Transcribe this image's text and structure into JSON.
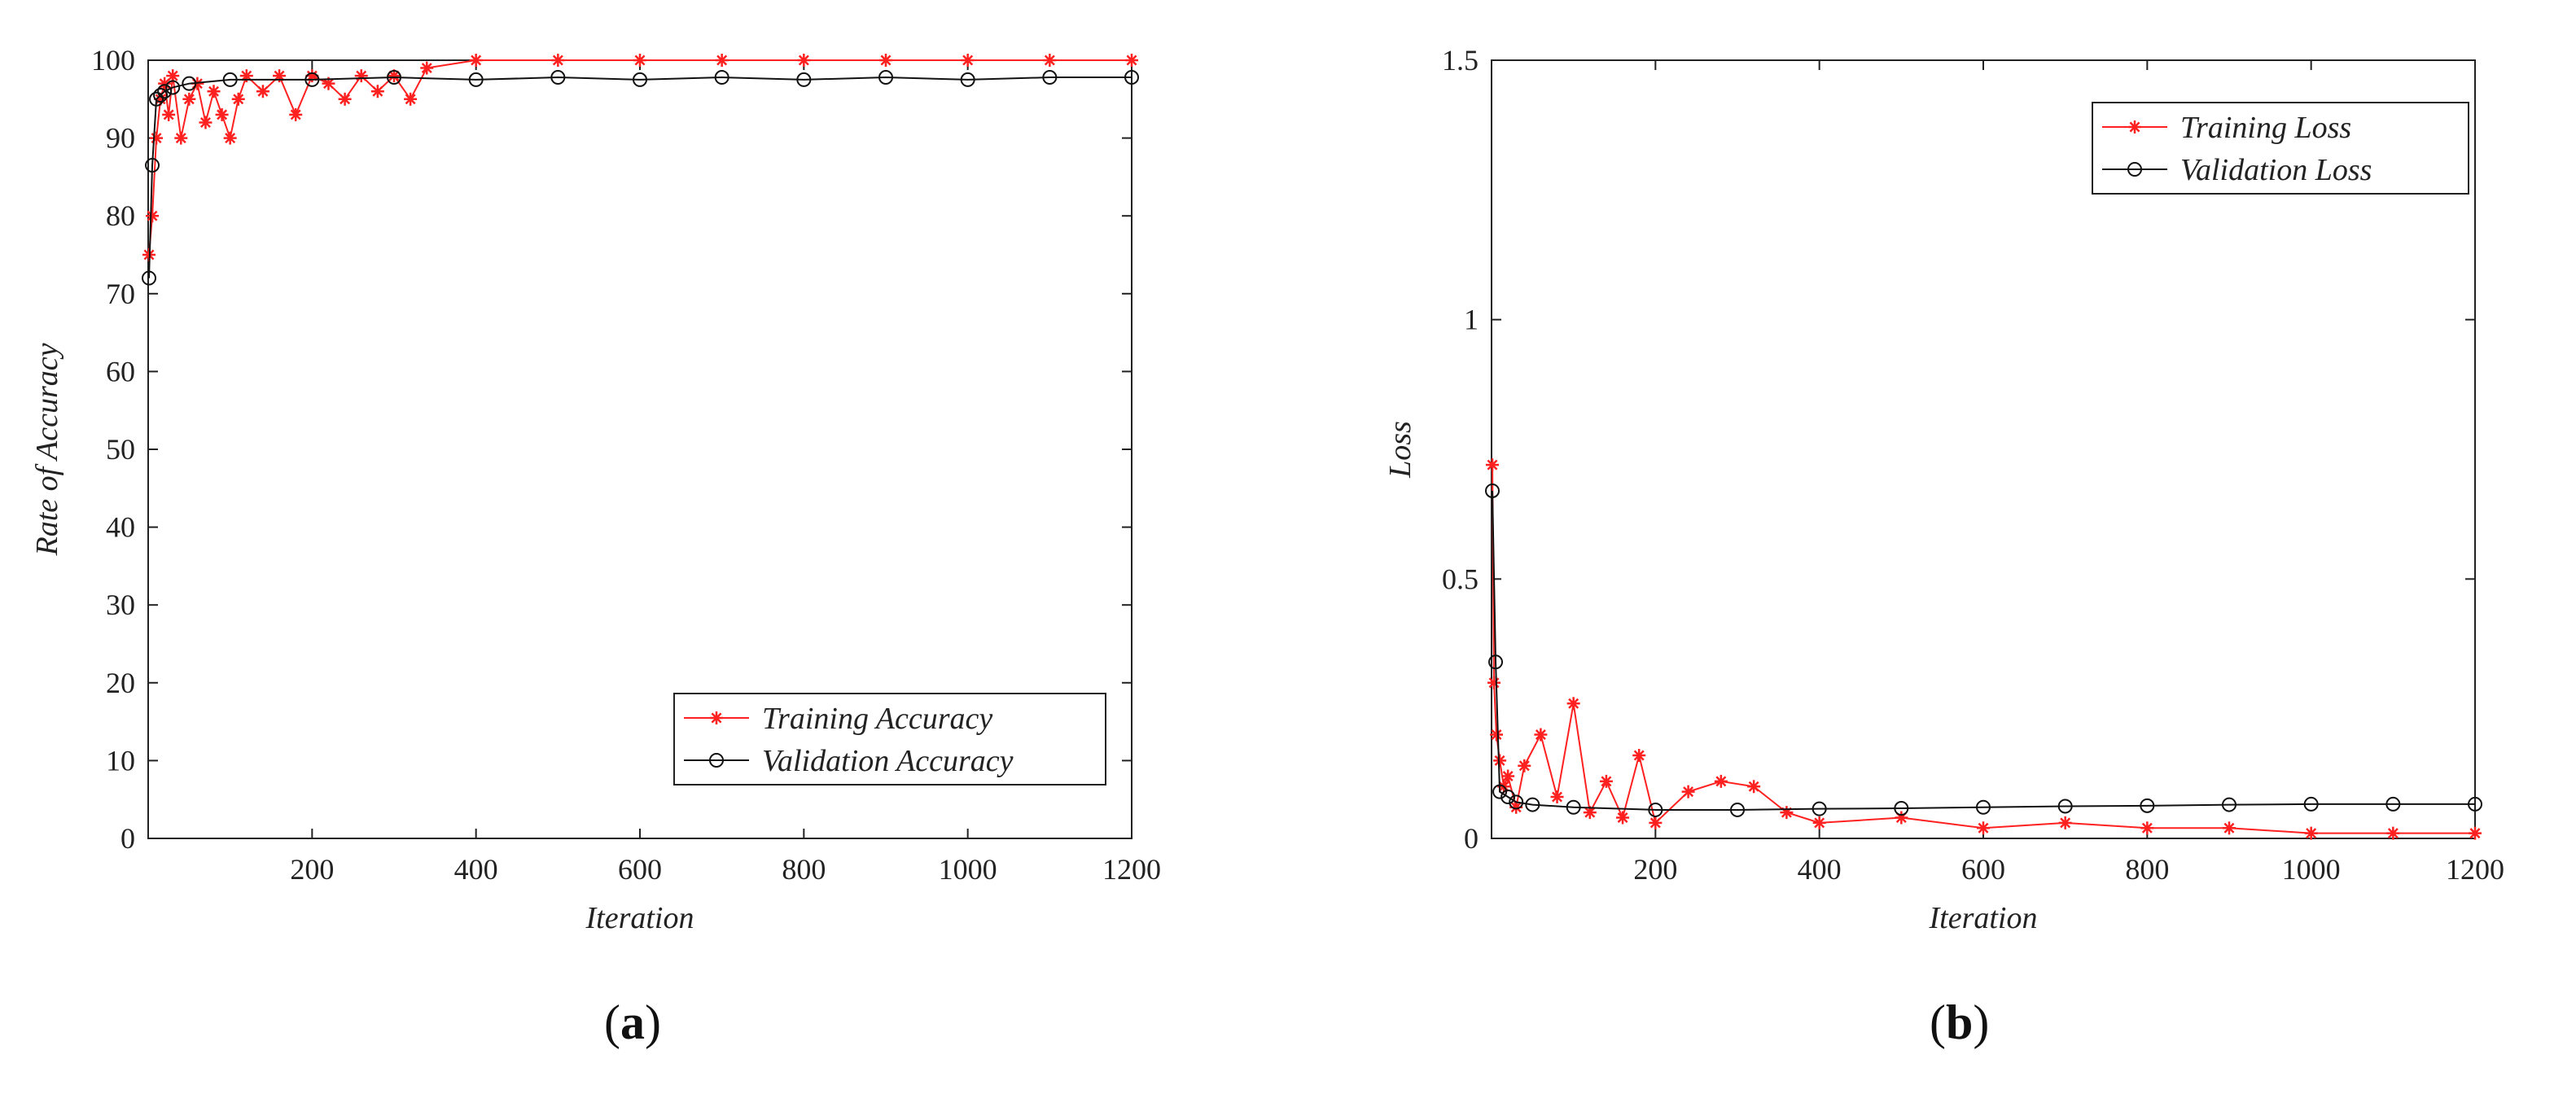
{
  "panels": [
    {
      "label_open": "(",
      "label_letter": "a",
      "label_close": ")"
    },
    {
      "label_open": "(",
      "label_letter": "b",
      "label_close": ")"
    }
  ],
  "chart_data": [
    {
      "type": "line",
      "title": "",
      "xlabel": "Iteration",
      "ylabel": "Rate of Accuracy",
      "xlim": [
        0,
        1200
      ],
      "ylim": [
        0,
        100
      ],
      "xticks": [
        200,
        400,
        600,
        800,
        1000,
        1200
      ],
      "yticks": [
        0,
        10,
        20,
        30,
        40,
        50,
        60,
        70,
        80,
        90,
        100
      ],
      "legend_position": "bottom-right",
      "series": [
        {
          "name": "Training Accuracy",
          "color": "#ff2020",
          "marker": "asterisk",
          "x": [
            1,
            5,
            10,
            15,
            20,
            25,
            30,
            40,
            50,
            60,
            70,
            80,
            90,
            100,
            110,
            120,
            140,
            160,
            180,
            200,
            220,
            240,
            260,
            280,
            300,
            320,
            340,
            400,
            500,
            600,
            700,
            800,
            900,
            1000,
            1100,
            1200
          ],
          "y": [
            75,
            80,
            90,
            95,
            97,
            93,
            98,
            90,
            95,
            97,
            92,
            96,
            93,
            90,
            95,
            98,
            96,
            98,
            93,
            98,
            97,
            95,
            98,
            96,
            98,
            95,
            99,
            100,
            100,
            100,
            100,
            100,
            100,
            100,
            100,
            100
          ]
        },
        {
          "name": "Validation Accuracy",
          "color": "#111111",
          "marker": "circle",
          "x": [
            1,
            5,
            10,
            15,
            20,
            30,
            50,
            100,
            200,
            300,
            400,
            500,
            600,
            700,
            800,
            900,
            1000,
            1100,
            1200
          ],
          "y": [
            72,
            86.5,
            95,
            95.5,
            96,
            96.5,
            97,
            97.5,
            97.5,
            97.8,
            97.5,
            97.8,
            97.5,
            97.8,
            97.5,
            97.8,
            97.5,
            97.8,
            97.8
          ]
        }
      ]
    },
    {
      "type": "line",
      "title": "",
      "xlabel": "Iteration",
      "ylabel": "Loss",
      "xlim": [
        0,
        1200
      ],
      "ylim": [
        0,
        1.5
      ],
      "xticks": [
        200,
        400,
        600,
        800,
        1000,
        1200
      ],
      "yticks": [
        0,
        0.5,
        1,
        1.5
      ],
      "ytick_labels": [
        "0",
        "0.5",
        "1",
        "1.5"
      ],
      "legend_position": "top-right",
      "series": [
        {
          "name": "Training Loss",
          "color": "#ff2020",
          "marker": "asterisk",
          "x": [
            1,
            3,
            6,
            10,
            15,
            20,
            30,
            40,
            60,
            80,
            100,
            120,
            140,
            160,
            180,
            200,
            240,
            280,
            320,
            360,
            400,
            500,
            600,
            700,
            800,
            900,
            1000,
            1100,
            1200
          ],
          "y": [
            0.72,
            0.3,
            0.2,
            0.15,
            0.1,
            0.12,
            0.06,
            0.14,
            0.2,
            0.08,
            0.26,
            0.05,
            0.11,
            0.04,
            0.16,
            0.03,
            0.09,
            0.11,
            0.1,
            0.05,
            0.03,
            0.04,
            0.02,
            0.03,
            0.02,
            0.02,
            0.01,
            0.01,
            0.01
          ]
        },
        {
          "name": "Validation Loss",
          "color": "#111111",
          "marker": "circle",
          "x": [
            1,
            5,
            10,
            20,
            30,
            50,
            100,
            200,
            300,
            400,
            500,
            600,
            700,
            800,
            900,
            1000,
            1100,
            1200
          ],
          "y": [
            0.67,
            0.34,
            0.09,
            0.08,
            0.07,
            0.065,
            0.06,
            0.055,
            0.055,
            0.057,
            0.058,
            0.06,
            0.062,
            0.063,
            0.065,
            0.066,
            0.066,
            0.066
          ]
        }
      ]
    }
  ]
}
